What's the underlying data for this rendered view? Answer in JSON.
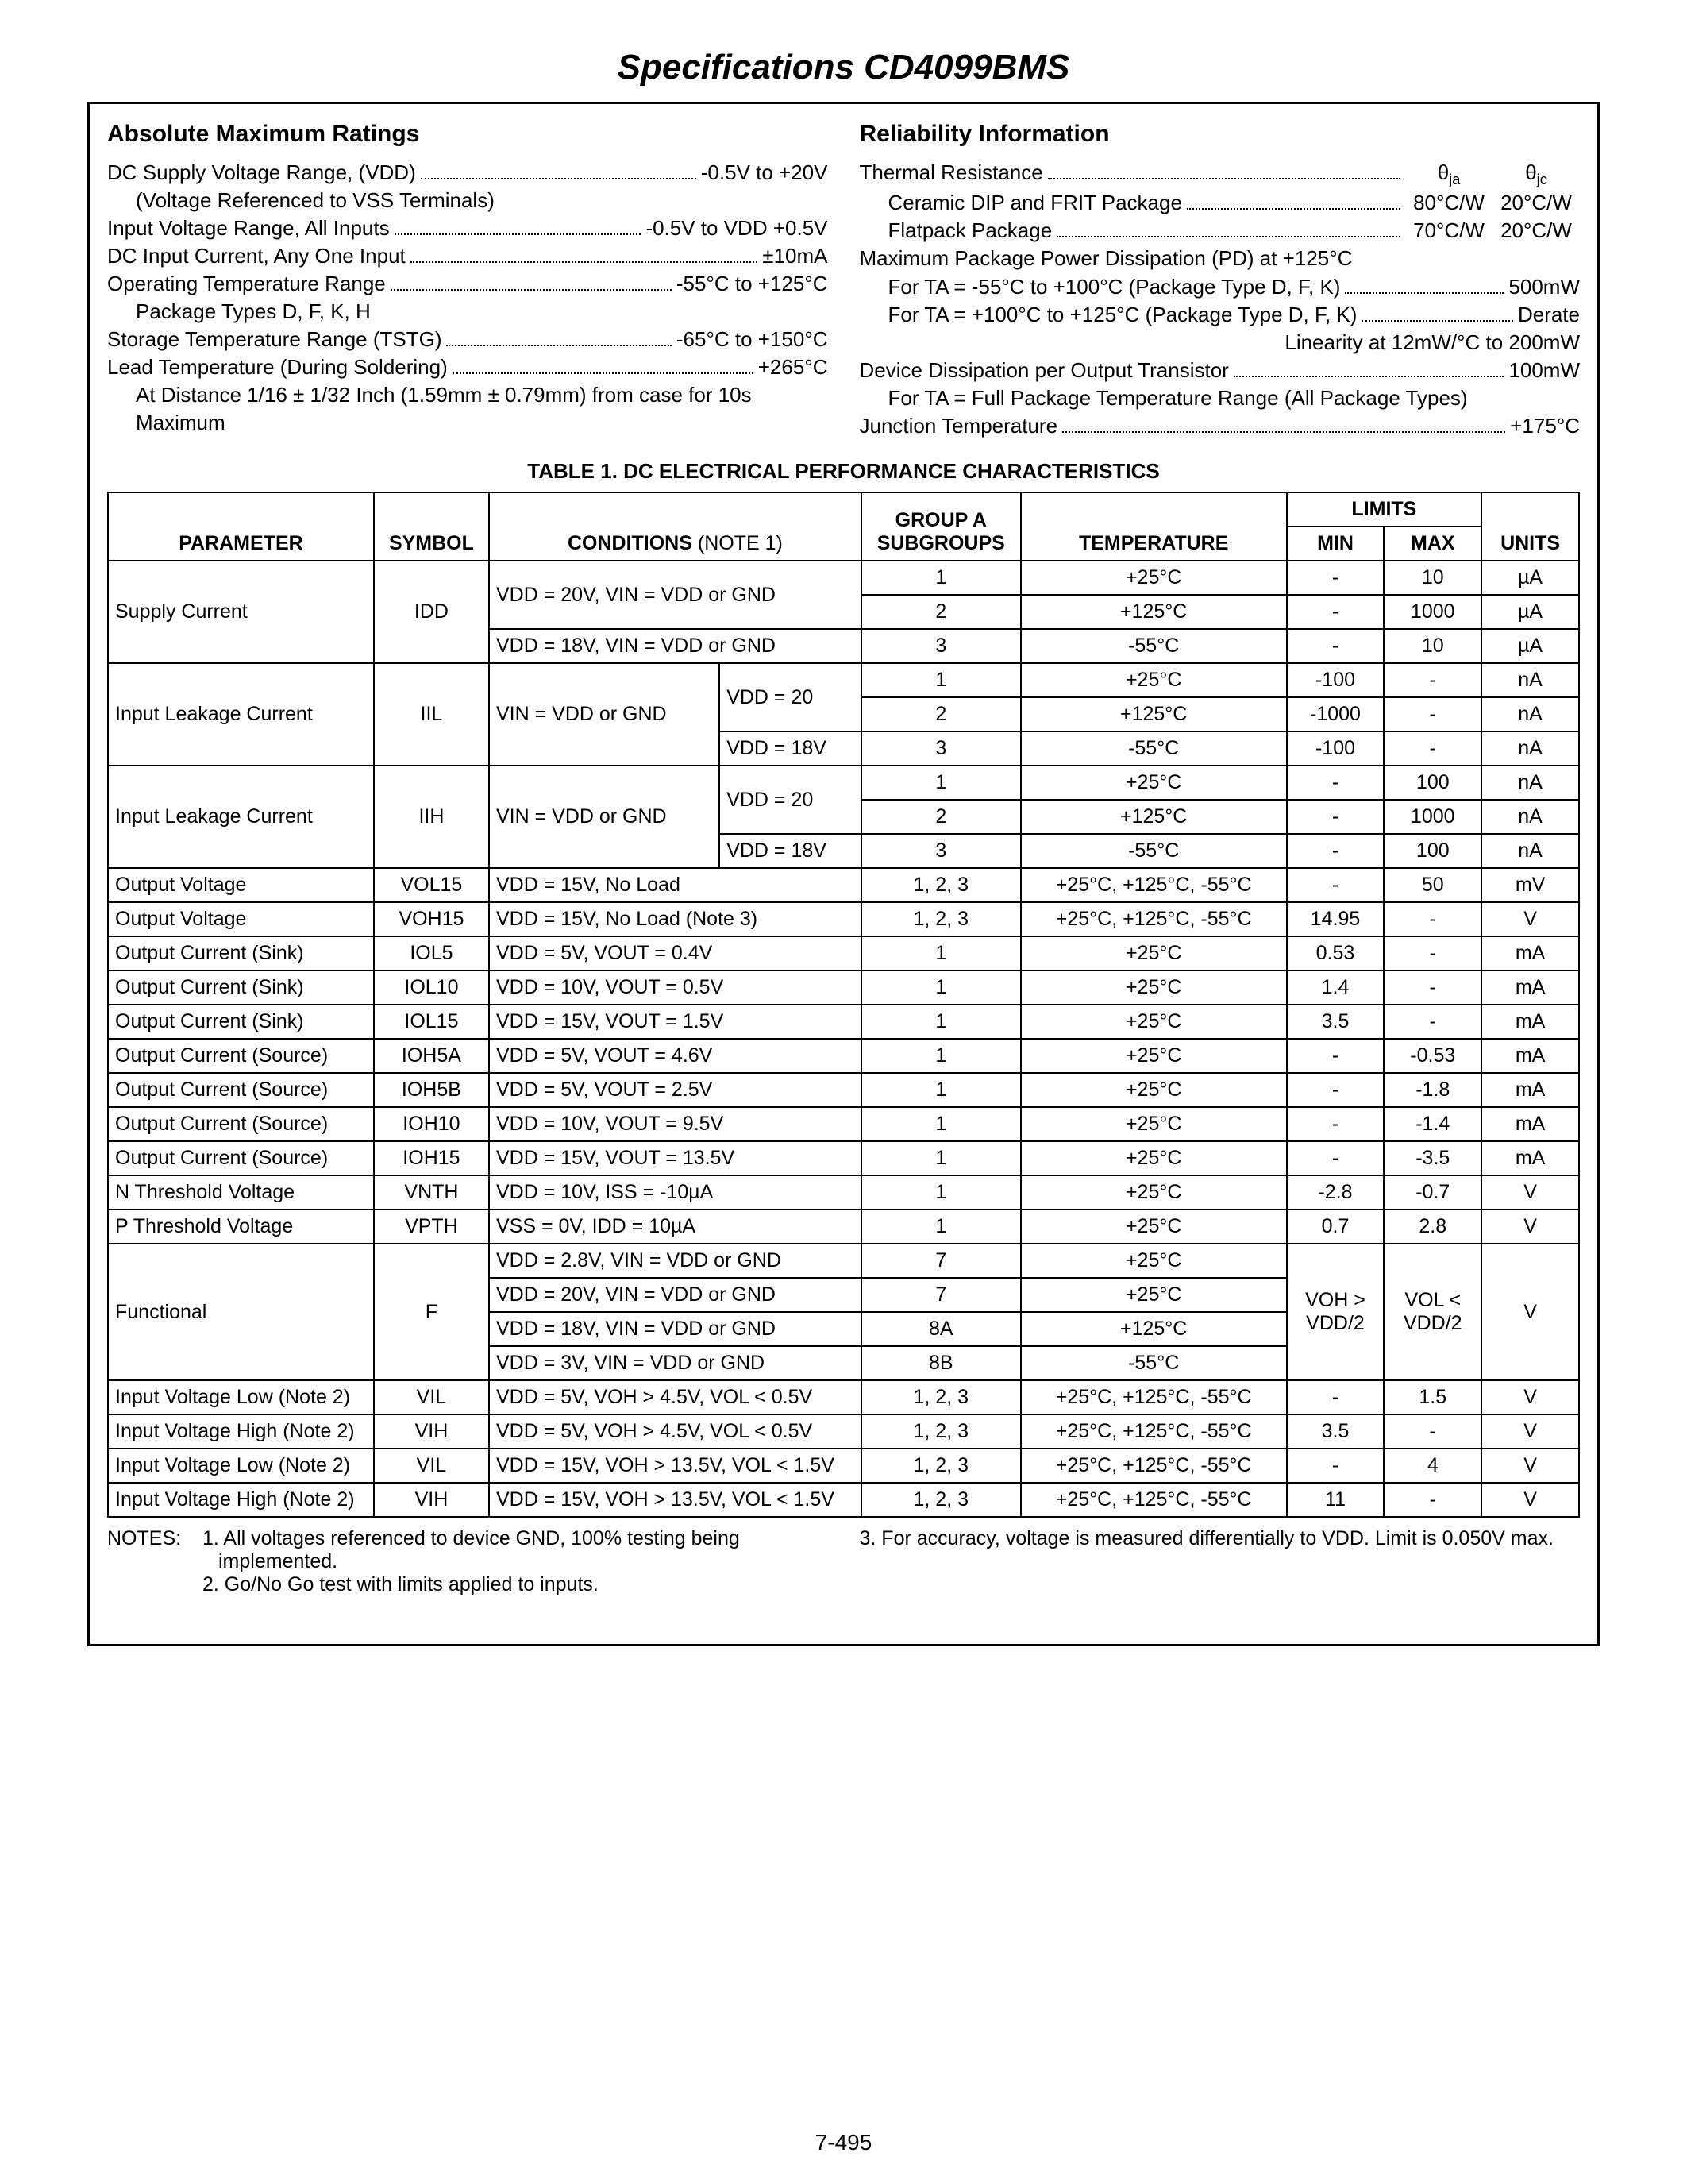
{
  "title": "Specifications CD4099BMS",
  "page_number": "7-495",
  "abs": {
    "heading": "Absolute Maximum Ratings",
    "items": [
      {
        "label": "DC Supply Voltage Range, (VDD)",
        "value": "-0.5V to +20V",
        "sub": "(Voltage Referenced to VSS Terminals)"
      },
      {
        "label": "Input Voltage Range, All Inputs",
        "value": "-0.5V to VDD +0.5V"
      },
      {
        "label": "DC Input Current, Any One Input",
        "value": "±10mA"
      },
      {
        "label": "Operating Temperature Range",
        "value": "-55°C to +125°C",
        "sub": "Package Types D, F, K, H"
      },
      {
        "label": "Storage Temperature Range (TSTG)",
        "value": "-65°C to +150°C"
      },
      {
        "label": "Lead Temperature (During Soldering)",
        "value": "+265°C",
        "sub": "At Distance 1/16 ± 1/32 Inch (1.59mm ± 0.79mm) from case for 10s Maximum"
      }
    ]
  },
  "rel": {
    "heading": "Reliability Information",
    "thermal_label": "Thermal Resistance",
    "theta_ja": "θ",
    "theta_ja_sub": "ja",
    "theta_jc": "θ",
    "theta_jc_sub": "jc",
    "thermal_rows": [
      {
        "label": "Ceramic DIP and FRIT Package",
        "ja": "80°C/W",
        "jc": "20°C/W"
      },
      {
        "label": "Flatpack Package",
        "ja": "70°C/W",
        "jc": "20°C/W"
      }
    ],
    "pd_label": "Maximum Package Power Dissipation (PD) at +125°C",
    "pd_rows": [
      {
        "label": "For TA = -55°C to +100°C (Package Type D, F, K)",
        "value": "500mW"
      },
      {
        "label": "For TA = +100°C to +125°C (Package Type D, F, K)",
        "value": "Derate"
      }
    ],
    "linearity": "Linearity at 12mW/°C to 200mW",
    "dev_diss": {
      "label": "Device Dissipation per Output Transistor",
      "value": "100mW",
      "sub": "For TA = Full Package Temperature Range (All Package Types)"
    },
    "junction": {
      "label": "Junction Temperature",
      "value": "+175°C"
    }
  },
  "table": {
    "caption": "TABLE 1.  DC ELECTRICAL PERFORMANCE CHARACTERISTICS",
    "headers": {
      "parameter": "PARAMETER",
      "symbol": "SYMBOL",
      "conditions": "CONDITIONS",
      "cond_note": "(NOTE 1)",
      "group": "GROUP A SUBGROUPS",
      "temperature": "TEMPERATURE",
      "limits": "LIMITS",
      "min": "MIN",
      "max": "MAX",
      "units": "UNITS"
    },
    "rows": [
      {
        "param": "Supply Current",
        "pr": 3,
        "sym": "IDD",
        "sr": 3,
        "cond": "VDD = 20V, VIN = VDD or GND",
        "ccols": 2,
        "cr": 2,
        "grp": "1",
        "temp": "+25°C",
        "min": "-",
        "max": "10",
        "units": "µA"
      },
      {
        "grp": "2",
        "temp": "+125°C",
        "min": "-",
        "max": "1000",
        "units": "µA"
      },
      {
        "cond": "VDD = 18V, VIN = VDD or GND",
        "ccols": 2,
        "grp": "3",
        "temp": "-55°C",
        "min": "-",
        "max": "10",
        "units": "µA"
      },
      {
        "param": "Input Leakage Current",
        "pr": 3,
        "sym": "IIL",
        "sr": 3,
        "cond": "VIN = VDD or GND",
        "cr": 3,
        "cond2": "VDD = 20",
        "c2r": 2,
        "grp": "1",
        "temp": "+25°C",
        "min": "-100",
        "max": "-",
        "units": "nA"
      },
      {
        "grp": "2",
        "temp": "+125°C",
        "min": "-1000",
        "max": "-",
        "units": "nA"
      },
      {
        "cond2": "VDD = 18V",
        "grp": "3",
        "temp": "-55°C",
        "min": "-100",
        "max": "-",
        "units": "nA"
      },
      {
        "param": "Input Leakage Current",
        "pr": 3,
        "sym": "IIH",
        "sr": 3,
        "cond": "VIN = VDD or GND",
        "cr": 3,
        "cond2": "VDD = 20",
        "c2r": 2,
        "grp": "1",
        "temp": "+25°C",
        "min": "-",
        "max": "100",
        "units": "nA"
      },
      {
        "grp": "2",
        "temp": "+125°C",
        "min": "-",
        "max": "1000",
        "units": "nA"
      },
      {
        "cond2": "VDD = 18V",
        "grp": "3",
        "temp": "-55°C",
        "min": "-",
        "max": "100",
        "units": "nA"
      },
      {
        "param": "Output Voltage",
        "sym": "VOL15",
        "cond": "VDD = 15V, No Load",
        "ccols": 2,
        "grp": "1, 2, 3",
        "temp": "+25°C, +125°C, -55°C",
        "min": "-",
        "max": "50",
        "units": "mV"
      },
      {
        "param": "Output Voltage",
        "sym": "VOH15",
        "cond": "VDD = 15V, No Load (Note 3)",
        "ccols": 2,
        "grp": "1, 2, 3",
        "temp": "+25°C, +125°C, -55°C",
        "min": "14.95",
        "max": "-",
        "units": "V"
      },
      {
        "param": "Output Current (Sink)",
        "sym": "IOL5",
        "cond": "VDD = 5V, VOUT = 0.4V",
        "ccols": 2,
        "grp": "1",
        "temp": "+25°C",
        "min": "0.53",
        "max": "-",
        "units": "mA"
      },
      {
        "param": "Output Current (Sink)",
        "sym": "IOL10",
        "cond": "VDD = 10V, VOUT = 0.5V",
        "ccols": 2,
        "grp": "1",
        "temp": "+25°C",
        "min": "1.4",
        "max": "-",
        "units": "mA"
      },
      {
        "param": "Output Current (Sink)",
        "sym": "IOL15",
        "cond": "VDD = 15V, VOUT = 1.5V",
        "ccols": 2,
        "grp": "1",
        "temp": "+25°C",
        "min": "3.5",
        "max": "-",
        "units": "mA"
      },
      {
        "param": "Output Current (Source)",
        "sym": "IOH5A",
        "cond": "VDD = 5V, VOUT = 4.6V",
        "ccols": 2,
        "grp": "1",
        "temp": "+25°C",
        "min": "-",
        "max": "-0.53",
        "units": "mA"
      },
      {
        "param": "Output Current (Source)",
        "sym": "IOH5B",
        "cond": "VDD = 5V, VOUT = 2.5V",
        "ccols": 2,
        "grp": "1",
        "temp": "+25°C",
        "min": "-",
        "max": "-1.8",
        "units": "mA"
      },
      {
        "param": "Output Current (Source)",
        "sym": "IOH10",
        "cond": "VDD = 10V, VOUT = 9.5V",
        "ccols": 2,
        "grp": "1",
        "temp": "+25°C",
        "min": "-",
        "max": "-1.4",
        "units": "mA"
      },
      {
        "param": "Output Current (Source)",
        "sym": "IOH15",
        "cond": "VDD = 15V, VOUT = 13.5V",
        "ccols": 2,
        "grp": "1",
        "temp": "+25°C",
        "min": "-",
        "max": "-3.5",
        "units": "mA"
      },
      {
        "param": "N Threshold Voltage",
        "sym": "VNTH",
        "cond": "VDD = 10V, ISS = -10µA",
        "ccols": 2,
        "grp": "1",
        "temp": "+25°C",
        "min": "-2.8",
        "max": "-0.7",
        "units": "V"
      },
      {
        "param": "P Threshold Voltage",
        "sym": "VPTH",
        "cond": "VSS = 0V, IDD = 10µA",
        "ccols": 2,
        "grp": "1",
        "temp": "+25°C",
        "min": "0.7",
        "max": "2.8",
        "units": "V"
      },
      {
        "param": "Functional",
        "pr": 4,
        "sym": "F",
        "sr": 4,
        "cond": "VDD = 2.8V, VIN = VDD or GND",
        "ccols": 2,
        "grp": "7",
        "temp": "+25°C",
        "min": "VOH > VDD/2",
        "max": "VOL < VDD/2",
        "units": "V",
        "mr": 4,
        "xr": 4,
        "ur": 4
      },
      {
        "cond": "VDD = 20V, VIN = VDD or GND",
        "ccols": 2,
        "grp": "7",
        "temp": "+25°C"
      },
      {
        "cond": "VDD = 18V, VIN = VDD or GND",
        "ccols": 2,
        "grp": "8A",
        "temp": "+125°C"
      },
      {
        "cond": "VDD = 3V, VIN = VDD or GND",
        "ccols": 2,
        "grp": "8B",
        "temp": "-55°C"
      },
      {
        "param": "Input Voltage Low (Note 2)",
        "sym": "VIL",
        "cond": "VDD = 5V, VOH > 4.5V, VOL < 0.5V",
        "ccols": 2,
        "grp": "1, 2, 3",
        "temp": "+25°C, +125°C, -55°C",
        "min": "-",
        "max": "1.5",
        "units": "V"
      },
      {
        "param": "Input Voltage High (Note 2)",
        "sym": "VIH",
        "cond": "VDD = 5V, VOH > 4.5V, VOL < 0.5V",
        "ccols": 2,
        "grp": "1, 2, 3",
        "temp": "+25°C, +125°C, -55°C",
        "min": "3.5",
        "max": "-",
        "units": "V"
      },
      {
        "param": "Input Voltage Low (Note 2)",
        "sym": "VIL",
        "cond": "VDD = 15V, VOH > 13.5V, VOL < 1.5V",
        "ccols": 2,
        "grp": "1, 2, 3",
        "temp": "+25°C, +125°C, -55°C",
        "min": "-",
        "max": "4",
        "units": "V"
      },
      {
        "param": "Input Voltage High (Note 2)",
        "sym": "VIH",
        "cond": "VDD = 15V, VOH > 13.5V, VOL < 1.5V",
        "ccols": 2,
        "grp": "1, 2, 3",
        "temp": "+25°C, +125°C, -55°C",
        "min": "11",
        "max": "-",
        "units": "V"
      }
    ]
  },
  "notes": {
    "label": "NOTES:",
    "left": [
      "1. All voltages referenced to device GND, 100% testing being implemented.",
      "2. Go/No Go test with limits applied to inputs."
    ],
    "right": [
      "3. For accuracy, voltage is measured differentially to VDD. Limit is 0.050V max."
    ]
  },
  "colors": {
    "border": "#000000",
    "text": "#000000",
    "bg": "#ffffff"
  }
}
